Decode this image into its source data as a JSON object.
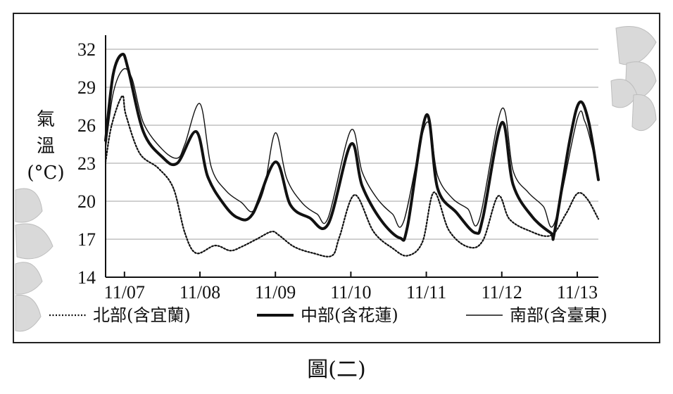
{
  "caption": "圖(二)",
  "chart_data": {
    "type": "line",
    "title": "",
    "ylabel": [
      "氣",
      "溫",
      "(°C)"
    ],
    "xlabel": "",
    "yticks": [
      32,
      29,
      26,
      23,
      20,
      17,
      14
    ],
    "ylim": [
      14,
      33
    ],
    "x_tick_labels": [
      "11/07",
      "11/08",
      "11/09",
      "11/10",
      "11/11",
      "11/12",
      "11/13"
    ],
    "x_tick_positions_day": [
      0.25,
      1.25,
      2.25,
      3.25,
      4.25,
      5.25,
      6.25
    ],
    "xlim_day": [
      0,
      6.53
    ],
    "grid": true,
    "legend_position": "bottom",
    "series": [
      {
        "name": "北部(含宜蘭)",
        "style": "dotted",
        "color": "#111111",
        "x": [
          0,
          0.08,
          0.22,
          0.27,
          0.45,
          0.7,
          0.9,
          1.05,
          1.2,
          1.45,
          1.65,
          1.8,
          2.0,
          2.2,
          2.3,
          2.5,
          2.75,
          3.0,
          3.1,
          3.3,
          3.55,
          3.8,
          4.0,
          4.2,
          4.35,
          4.55,
          4.8,
          5.0,
          5.2,
          5.35,
          5.6,
          5.9,
          6.1,
          6.25,
          6.38,
          6.53
        ],
        "values": [
          23.1,
          26.0,
          28.3,
          26.8,
          23.8,
          22.6,
          21.0,
          17.5,
          15.9,
          16.5,
          16.1,
          16.4,
          17.0,
          17.6,
          17.3,
          16.4,
          15.9,
          15.7,
          17.2,
          20.5,
          17.6,
          16.3,
          15.7,
          16.8,
          20.7,
          17.7,
          16.4,
          16.9,
          20.4,
          18.6,
          17.7,
          17.3,
          19.0,
          20.6,
          20.2,
          18.6
        ]
      },
      {
        "name": "中部(含花蓮)",
        "style": "thick",
        "color": "#111111",
        "x": [
          0,
          0.1,
          0.22,
          0.3,
          0.5,
          0.75,
          0.95,
          1.2,
          1.35,
          1.55,
          1.75,
          1.95,
          2.25,
          2.45,
          2.7,
          2.95,
          3.25,
          3.4,
          3.65,
          3.9,
          4.0,
          4.25,
          4.4,
          4.65,
          4.9,
          5.0,
          5.25,
          5.4,
          5.65,
          5.9,
          5.95,
          6.15,
          6.28,
          6.4,
          6.53
        ],
        "values": [
          24.8,
          30.0,
          31.6,
          30.4,
          25.5,
          23.5,
          23.0,
          25.5,
          22.0,
          19.9,
          18.7,
          19.0,
          23.1,
          19.7,
          18.7,
          18.2,
          24.5,
          21.2,
          18.5,
          17.1,
          18.0,
          26.8,
          21.0,
          19.1,
          17.5,
          18.7,
          26.2,
          21.3,
          18.8,
          17.5,
          17.6,
          24.8,
          27.8,
          26.3,
          21.7
        ]
      },
      {
        "name": "南部(含臺東)",
        "style": "thin",
        "color": "#111111",
        "x": [
          0,
          0.1,
          0.23,
          0.35,
          0.5,
          0.75,
          0.95,
          1.05,
          1.25,
          1.4,
          1.6,
          1.8,
          1.95,
          2.1,
          2.25,
          2.4,
          2.6,
          2.8,
          2.95,
          3.25,
          3.4,
          3.6,
          3.8,
          3.95,
          4.25,
          4.4,
          4.6,
          4.8,
          4.95,
          5.25,
          5.4,
          5.6,
          5.8,
          5.95,
          6.25,
          6.35,
          6.45,
          6.53
        ],
        "values": [
          24.2,
          28.5,
          30.4,
          29.7,
          26.2,
          24.1,
          23.4,
          24.5,
          27.7,
          22.7,
          20.8,
          19.9,
          19.2,
          21.0,
          25.4,
          21.8,
          19.9,
          19.0,
          18.7,
          25.6,
          22.3,
          20.2,
          19.0,
          18.4,
          26.2,
          22.0,
          20.2,
          19.4,
          18.5,
          27.3,
          22.4,
          20.7,
          19.6,
          18.3,
          26.5,
          26.3,
          24.2,
          22.0
        ]
      }
    ]
  }
}
